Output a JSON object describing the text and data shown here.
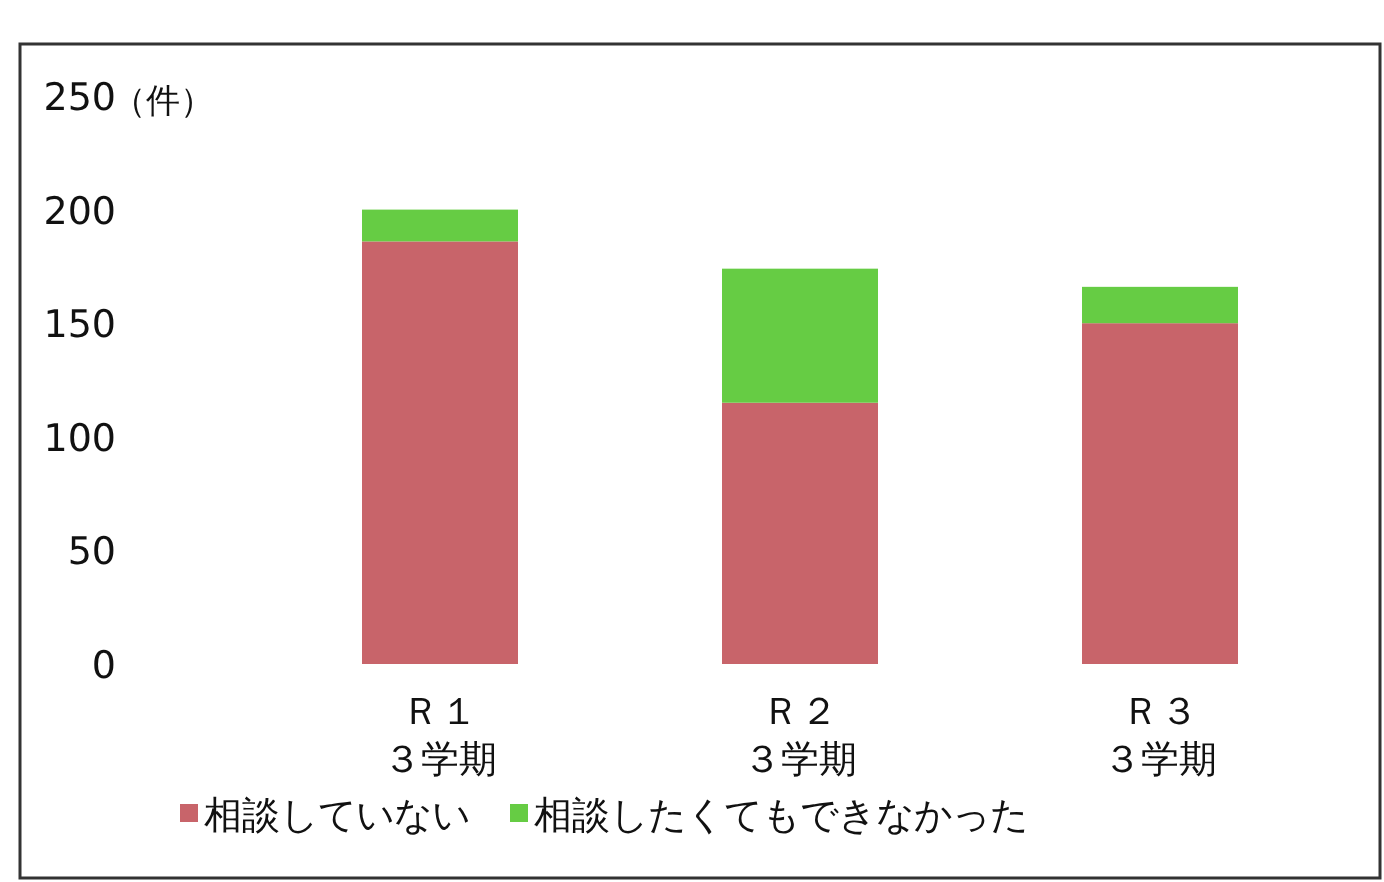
{
  "chart_data": {
    "type": "bar",
    "stacked": true,
    "ylabel": "（件）",
    "categories": [
      "Ｒ１３学期",
      "Ｒ２３学期",
      "Ｒ３３学期"
    ],
    "series": [
      {
        "name": "相談していない",
        "color": "#c8646a",
        "values": [
          186,
          115,
          150
        ]
      },
      {
        "name": "相談したくてもできなかった",
        "color": "#66cc44",
        "values": [
          14,
          59,
          16
        ]
      }
    ],
    "ylim": [
      0,
      250
    ],
    "yticks": [
      0,
      50,
      100,
      150,
      200,
      250
    ],
    "grid": false,
    "legend": "bottom"
  }
}
